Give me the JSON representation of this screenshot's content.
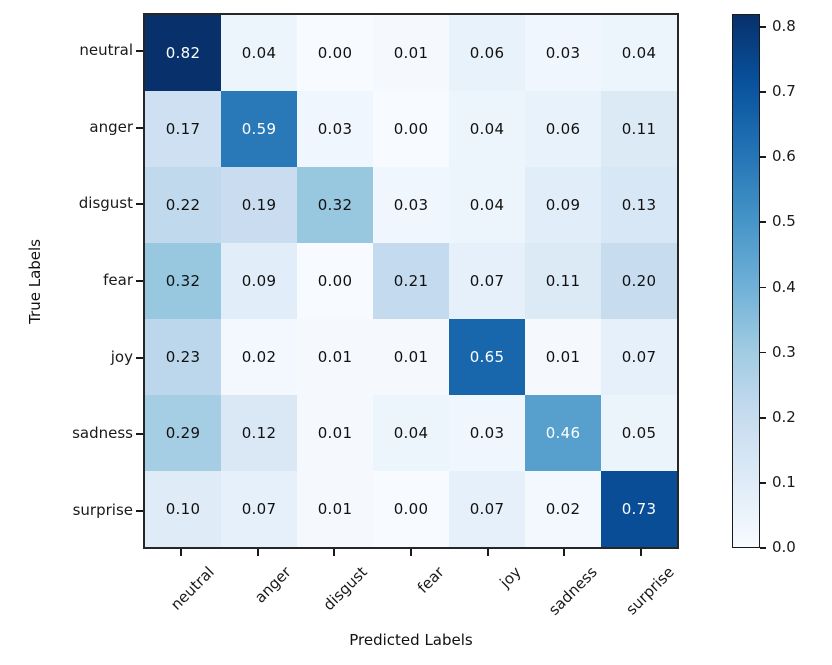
{
  "chart_data": {
    "type": "heatmap",
    "title": "",
    "xlabel": "Predicted Labels",
    "ylabel": "True Labels",
    "x_categories": [
      "neutral",
      "anger",
      "disgust",
      "fear",
      "joy",
      "sadness",
      "surprise"
    ],
    "y_categories": [
      "neutral",
      "anger",
      "disgust",
      "fear",
      "joy",
      "sadness",
      "surprise"
    ],
    "matrix": [
      [
        0.82,
        0.04,
        0.0,
        0.01,
        0.06,
        0.03,
        0.04
      ],
      [
        0.17,
        0.59,
        0.03,
        0.0,
        0.04,
        0.06,
        0.11
      ],
      [
        0.22,
        0.19,
        0.32,
        0.03,
        0.04,
        0.09,
        0.13
      ],
      [
        0.32,
        0.09,
        0.0,
        0.21,
        0.07,
        0.11,
        0.2
      ],
      [
        0.23,
        0.02,
        0.01,
        0.01,
        0.65,
        0.01,
        0.07
      ],
      [
        0.29,
        0.12,
        0.01,
        0.04,
        0.03,
        0.46,
        0.05
      ],
      [
        0.1,
        0.07,
        0.01,
        0.0,
        0.07,
        0.02,
        0.73
      ]
    ],
    "cell_value_decimals": 2,
    "colormap": "Blues",
    "colormap_stops": [
      "#f7fbff",
      "#deebf7",
      "#c6dbef",
      "#9ecae1",
      "#6baed6",
      "#4292c6",
      "#2171b5",
      "#08519c",
      "#08306b"
    ],
    "vmin": 0.0,
    "vmax": 0.82,
    "text_threshold": 0.41,
    "cell_text_color_dark": "#111111",
    "cell_text_color_light": "#ffffff",
    "axis_color": "#1a1a1a",
    "grid": false,
    "colorbar": {
      "position": "right",
      "ticks": [
        0.0,
        0.1,
        0.2,
        0.3,
        0.4,
        0.5,
        0.6,
        0.7,
        0.8
      ],
      "tick_decimals": 1
    }
  }
}
